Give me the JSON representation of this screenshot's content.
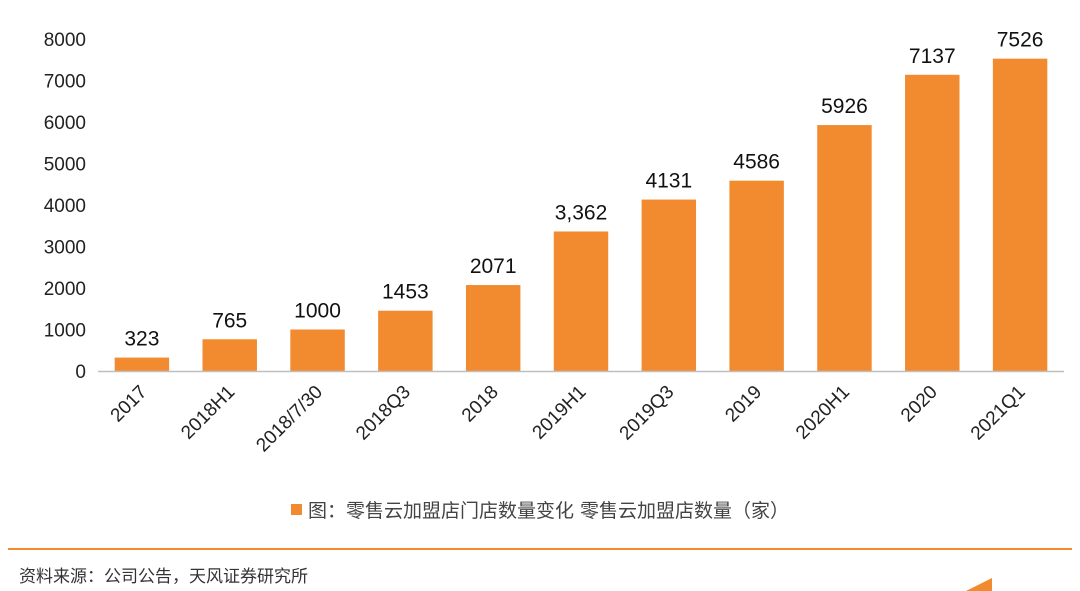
{
  "chart_data": {
    "type": "bar",
    "categories": [
      "2017",
      "2018H1",
      "2018/7/30",
      "2018Q3",
      "2018",
      "2019H1",
      "2019Q3",
      "2019",
      "2020H1",
      "2020",
      "2021Q1"
    ],
    "values": [
      323,
      765,
      1000,
      1453,
      2071,
      3362,
      4131,
      4586,
      5926,
      7137,
      7526
    ],
    "data_labels": [
      "323",
      "765",
      "1000",
      "1453",
      "2071",
      "3,362",
      "4131",
      "4586",
      "5926",
      "7137",
      "7526"
    ],
    "yticks": [
      0,
      1000,
      2000,
      3000,
      4000,
      5000,
      6000,
      7000,
      8000
    ],
    "ylim": [
      0,
      8000
    ],
    "grid": false,
    "legend_position": "bottom",
    "series": [
      {
        "name": "图：零售云加盟店门店数量变化 零售云加盟店数量（家）",
        "values": [
          323,
          765,
          1000,
          1453,
          2071,
          3362,
          4131,
          4586,
          5926,
          7137,
          7526
        ]
      }
    ],
    "colors": {
      "bar": "#f28a30",
      "axis": "#bfbfbf"
    }
  },
  "legend": {
    "label": "图：零售云加盟店门店数量变化 零售云加盟店数量（家）"
  },
  "footer": {
    "source": "资料来源：公司公告，天风证券研究所"
  },
  "colors": {
    "divider": "#f28a30"
  }
}
